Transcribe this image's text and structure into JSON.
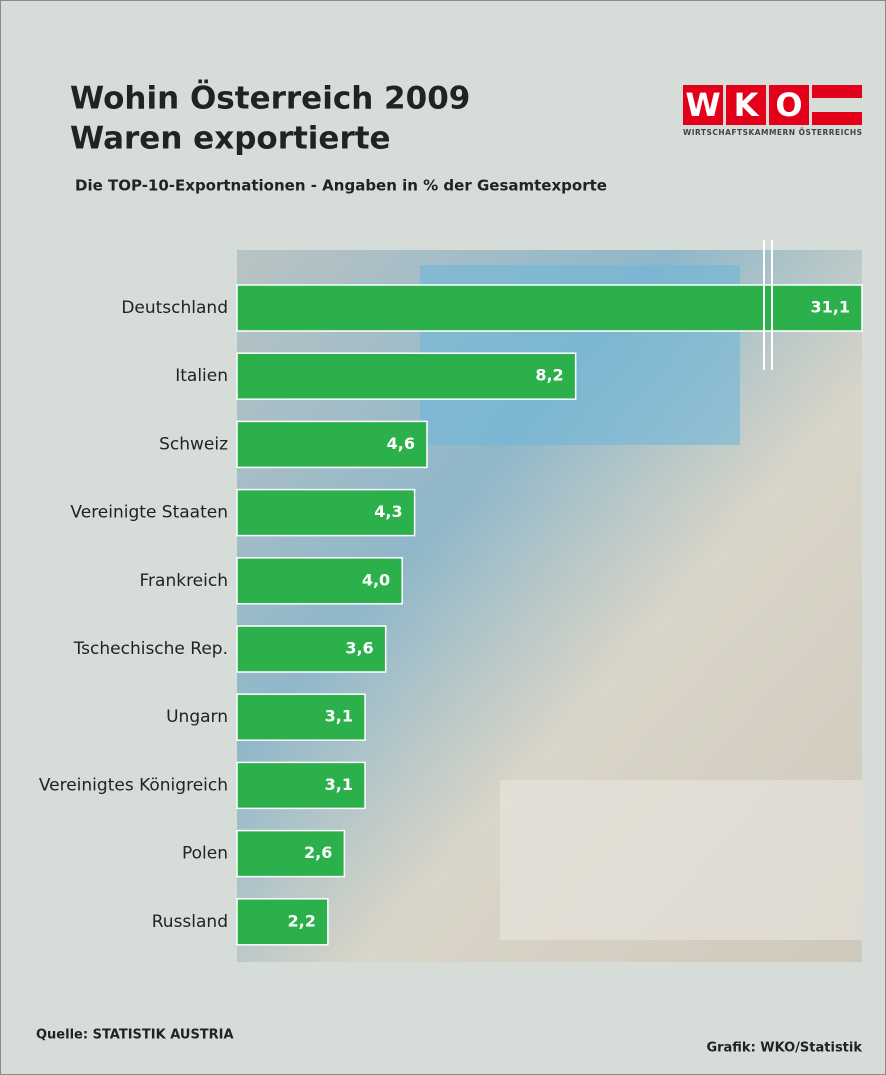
{
  "chart_data": {
    "type": "hbar",
    "title": [
      "Wohin Österreich 2009",
      "Waren exportierte"
    ],
    "subtitle": "Die TOP-10-Exportnationen - Angaben in % der Gesamtexporte",
    "categories": [
      "Deutschland",
      "Italien",
      "Schweiz",
      "Vereinigte Staaten",
      "Frankreich",
      "Tschechische Rep.",
      "Ungarn",
      "Vereinigtes Königreich",
      "Polen",
      "Russland"
    ],
    "values": [
      31.1,
      8.2,
      4.6,
      4.3,
      4.0,
      3.6,
      3.1,
      3.1,
      2.6,
      2.2
    ],
    "value_labels": [
      "31,1",
      "8,2",
      "4,6",
      "4,3",
      "4,0",
      "3,6",
      "3,1",
      "3,1",
      "2,6",
      "2,2"
    ],
    "color": "#2cb04b",
    "source": "Quelle: STATISTIK AUSTRIA",
    "credit": "Grafik: WKO/Statistik",
    "logo": {
      "letters": [
        "W",
        "K",
        "O"
      ],
      "text": "WIRTSCHAFTSKAMMERN ÖSTERREICHS"
    }
  }
}
